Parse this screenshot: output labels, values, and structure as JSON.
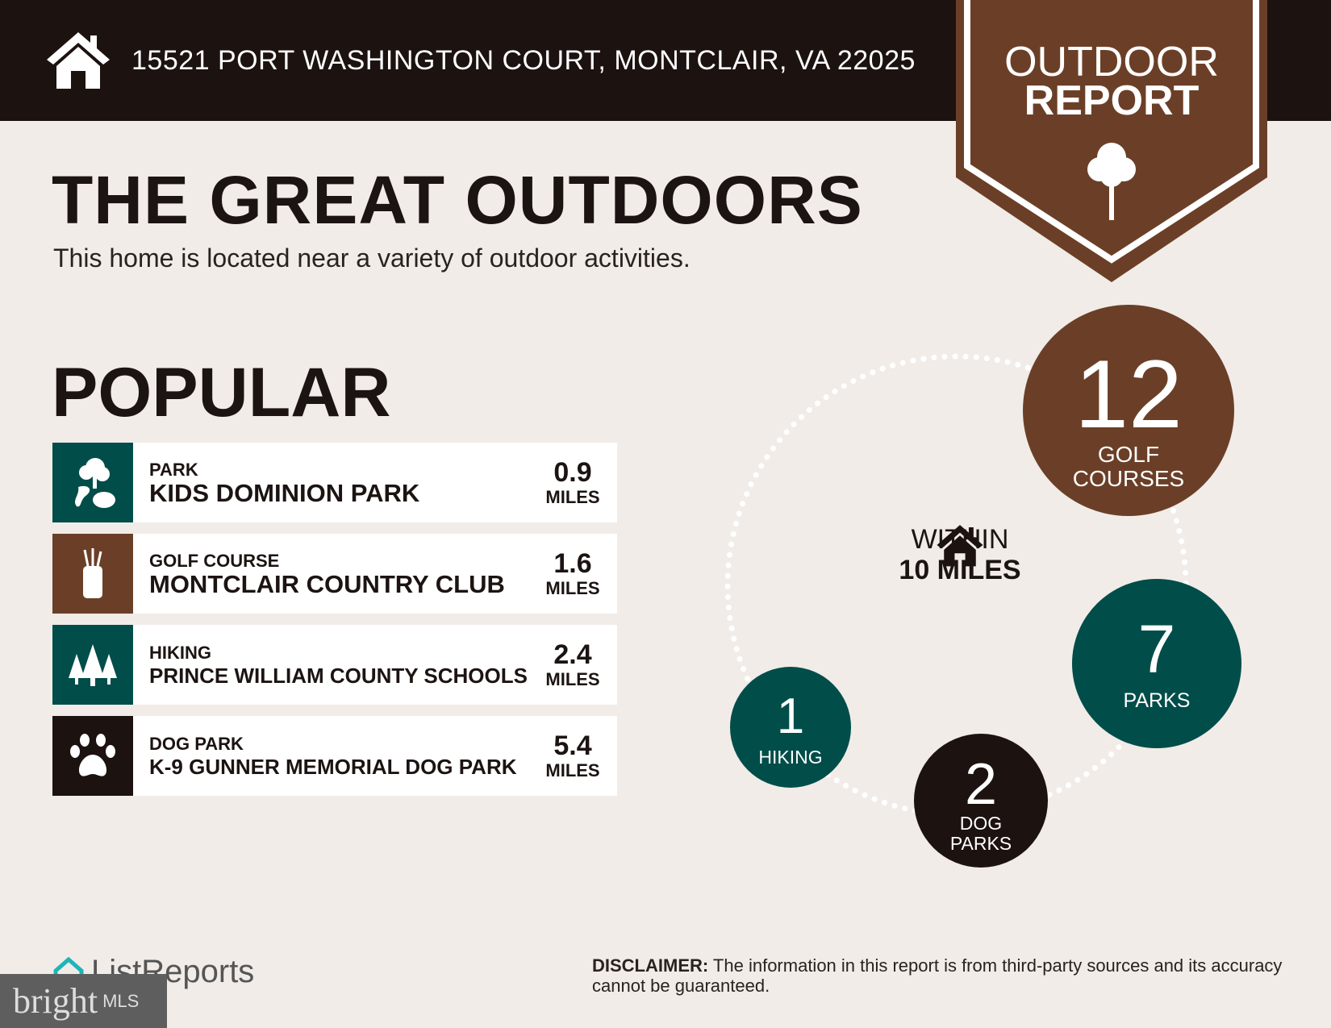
{
  "header": {
    "address": "15521 PORT WASHINGTON COURT, MONTCLAIR, VA 22025",
    "icon": "house-icon"
  },
  "badge": {
    "line1": "OUTDOOR",
    "line2": "REPORT",
    "icon": "tree-icon"
  },
  "title": "THE GREAT OUTDOORS",
  "subtitle": "This home is located near a variety of outdoor activities.",
  "popular": {
    "heading": "POPULAR",
    "items": [
      {
        "category": "PARK",
        "name": "KIDS DOMINION PARK",
        "distance": "0.9",
        "unit": "MILES",
        "icon": "park-icon",
        "color": "#004d4a"
      },
      {
        "category": "GOLF COURSE",
        "name": "MONTCLAIR COUNTRY CLUB",
        "distance": "1.6",
        "unit": "MILES",
        "icon": "golf-bag-icon",
        "color": "#6b3f27"
      },
      {
        "category": "HIKING",
        "name": "PRINCE WILLIAM COUNTY SCHOOLS",
        "distance": "2.4",
        "unit": "MILES",
        "icon": "pine-trees-icon",
        "color": "#004d4a"
      },
      {
        "category": "DOG PARK",
        "name": "K-9 GUNNER MEMORIAL DOG PARK",
        "distance": "5.4",
        "unit": "MILES",
        "icon": "paw-icon",
        "color": "#1c1210"
      }
    ]
  },
  "summary": {
    "within_line1": "WITHIN",
    "within_line2": "10 MILES",
    "counts": [
      {
        "count": "12",
        "label": "GOLF COURSES",
        "color": "#6b3f27"
      },
      {
        "count": "7",
        "label": "PARKS",
        "color": "#004d4a"
      },
      {
        "count": "2",
        "label": "DOG PARKS",
        "color": "#1c1210"
      },
      {
        "count": "1",
        "label": "HIKING",
        "color": "#004d4a"
      }
    ]
  },
  "disclaimer": {
    "label": "DISCLAIMER:",
    "text": " The information in this report is from third-party sources and its accuracy cannot be guaranteed."
  },
  "footer": {
    "listreports": "ListReports",
    "bright": "bright",
    "mls": "MLS"
  }
}
